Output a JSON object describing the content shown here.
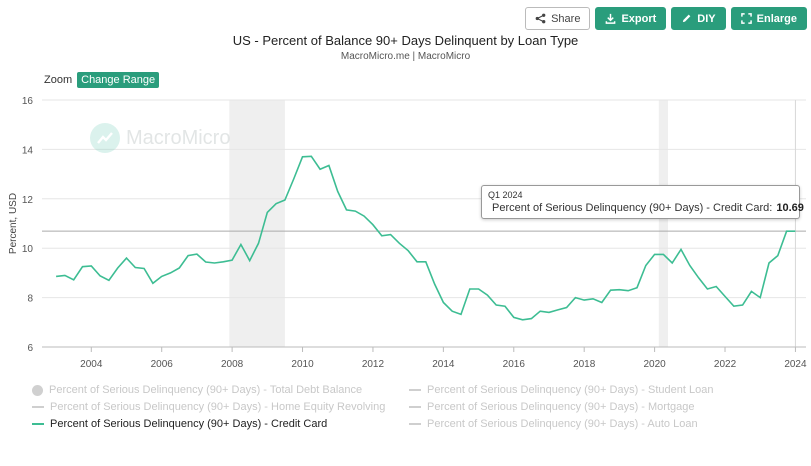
{
  "toolbar": {
    "share_label": "Share",
    "export_label": "Export",
    "diy_label": "DIY",
    "enlarge_label": "Enlarge"
  },
  "header": {
    "title": "US - Percent of Balance 90+ Days Delinquent by Loan Type",
    "subtitle": "MacroMicro.me | MacroMicro"
  },
  "zoom": {
    "label": "Zoom",
    "button_label": "Change Range"
  },
  "watermark": {
    "text": "MacroMicro"
  },
  "tooltip": {
    "date": "Q1 2024",
    "series": "Percent of Serious Delinquency (90+ Days) - Credit Card:",
    "value": "10.69"
  },
  "legend": [
    {
      "label": "Percent of Serious Delinquency (90+ Days) - Total Debt Balance",
      "symbol": "circle",
      "active": false
    },
    {
      "label": "Percent of Serious Delinquency (90+ Days) - Student Loan",
      "symbol": "line",
      "active": false
    },
    {
      "label": "Percent of Serious Delinquency (90+ Days) - Home Equity Revolving",
      "symbol": "line",
      "active": false
    },
    {
      "label": "Percent of Serious Delinquency (90+ Days) - Mortgage",
      "symbol": "line",
      "active": false
    },
    {
      "label": "Percent of Serious Delinquency (90+ Days) - Credit Card",
      "symbol": "line",
      "active": true
    },
    {
      "label": "Percent of Serious Delinquency (90+ Days) - Auto Loan",
      "symbol": "line",
      "active": false
    }
  ],
  "chart_data": {
    "type": "line",
    "ylabel": "Percent, USD",
    "ylim": [
      6,
      16
    ],
    "yticks": [
      6,
      8,
      10,
      12,
      14,
      16
    ],
    "xlim": [
      2002.6,
      2024.3
    ],
    "xticks": [
      2004,
      2006,
      2008,
      2010,
      2012,
      2014,
      2016,
      2018,
      2020,
      2022,
      2024
    ],
    "grid": true,
    "line_color": "#3dbd93",
    "recession_color": "#efefef",
    "recessions": [
      [
        2007.92,
        2009.5
      ],
      [
        2020.12,
        2020.38
      ]
    ],
    "reference_value": 10.69,
    "series": [
      {
        "name": "Percent of Serious Delinquency (90+ Days) - Credit Card",
        "x": [
          2003.0,
          2003.25,
          2003.5,
          2003.75,
          2004.0,
          2004.25,
          2004.5,
          2004.75,
          2005.0,
          2005.25,
          2005.5,
          2005.75,
          2006.0,
          2006.25,
          2006.5,
          2006.75,
          2007.0,
          2007.25,
          2007.5,
          2007.75,
          2008.0,
          2008.25,
          2008.5,
          2008.75,
          2009.0,
          2009.25,
          2009.5,
          2009.75,
          2010.0,
          2010.25,
          2010.5,
          2010.75,
          2011.0,
          2011.25,
          2011.5,
          2011.75,
          2012.0,
          2012.25,
          2012.5,
          2012.75,
          2013.0,
          2013.25,
          2013.5,
          2013.75,
          2014.0,
          2014.25,
          2014.5,
          2014.75,
          2015.0,
          2015.25,
          2015.5,
          2015.75,
          2016.0,
          2016.25,
          2016.5,
          2016.75,
          2017.0,
          2017.25,
          2017.5,
          2017.75,
          2018.0,
          2018.25,
          2018.5,
          2018.75,
          2019.0,
          2019.25,
          2019.5,
          2019.75,
          2020.0,
          2020.25,
          2020.5,
          2020.75,
          2021.0,
          2021.25,
          2021.5,
          2021.75,
          2022.0,
          2022.25,
          2022.5,
          2022.75,
          2023.0,
          2023.25,
          2023.5,
          2023.75,
          2024.0
        ],
        "values": [
          8.86,
          8.9,
          8.72,
          9.25,
          9.28,
          8.88,
          8.7,
          9.2,
          9.6,
          9.22,
          9.18,
          8.58,
          8.86,
          9.0,
          9.2,
          9.7,
          9.76,
          9.44,
          9.4,
          9.45,
          9.52,
          10.15,
          9.5,
          10.2,
          11.45,
          11.8,
          11.95,
          12.8,
          13.7,
          13.72,
          13.2,
          13.35,
          12.3,
          11.55,
          11.5,
          11.3,
          10.95,
          10.5,
          10.55,
          10.2,
          9.9,
          9.45,
          9.45,
          8.55,
          7.8,
          7.45,
          7.32,
          8.35,
          8.35,
          8.1,
          7.7,
          7.65,
          7.2,
          7.1,
          7.15,
          7.45,
          7.4,
          7.5,
          7.6,
          8.0,
          7.9,
          7.95,
          7.8,
          8.3,
          8.32,
          8.28,
          8.4,
          9.3,
          9.75,
          9.75,
          9.4,
          9.95,
          9.3,
          8.8,
          8.35,
          8.45,
          8.05,
          7.65,
          7.7,
          8.25,
          8.0,
          9.4,
          9.7,
          10.69,
          10.69
        ]
      }
    ]
  }
}
